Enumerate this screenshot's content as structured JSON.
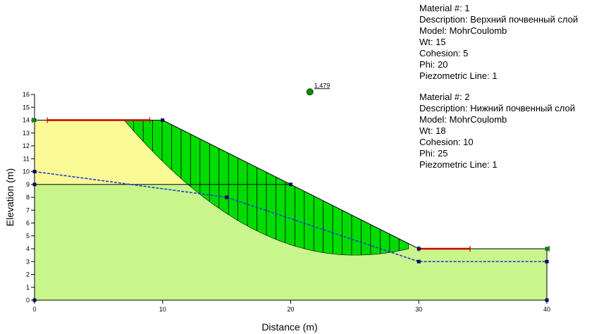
{
  "chart_data": {
    "type": "slope-stability",
    "xlabel": "Distance (m)",
    "ylabel": "Elevation (m)",
    "xlim": [
      0,
      40
    ],
    "ylim": [
      0,
      16
    ],
    "x_ticks": [
      0,
      10,
      20,
      30,
      40
    ],
    "y_ticks": [
      0,
      1,
      2,
      3,
      4,
      5,
      6,
      7,
      8,
      9,
      10,
      11,
      12,
      13,
      14,
      15,
      16
    ],
    "grid": false,
    "ground_surface": [
      [
        0,
        14
      ],
      [
        10,
        14
      ],
      [
        30,
        4
      ],
      [
        40,
        4
      ],
      [
        40,
        0
      ],
      [
        0,
        0
      ]
    ],
    "layer_boundary": [
      [
        0,
        9
      ],
      [
        20,
        9
      ]
    ],
    "piezometric_line": [
      [
        0,
        10
      ],
      [
        15,
        8
      ],
      [
        30,
        3
      ],
      [
        40,
        3
      ]
    ],
    "slip_surface_entry": [
      7,
      14
    ],
    "slip_surface_exit": [
      29.2,
      4
    ],
    "slip_surface_lowest": [
      25,
      3.5
    ],
    "slice_count": 30,
    "entry_range_left": [
      1,
      9
    ],
    "exit_range_right": [
      30,
      34
    ],
    "slip_center": [
      21.5,
      16.2
    ],
    "factor_of_safety": "1,479",
    "colors": {
      "upper_layer": "#fafa96",
      "lower_layer": "#c8f58c",
      "slip_mass": "#00dc00",
      "piezometric": "#1e3cd2",
      "ranges": "#c80000",
      "center": "#0a8a0a",
      "nodes": "#0a0a5a"
    },
    "materials": [
      {
        "lines": [
          "Material #: 1",
          "Description: Верхний почвенный слой",
          "Model: MohrCoulomb",
          "Wt: 15",
          "Cohesion: 5",
          "Phi: 20",
          "Piezometric Line: 1"
        ]
      },
      {
        "lines": [
          "Material #: 2",
          "Description: Нижний почвенный слой",
          "Model: MohrCoulomb",
          "Wt: 18",
          "Cohesion: 10",
          "Phi: 25",
          "Piezometric Line: 1"
        ]
      }
    ]
  }
}
